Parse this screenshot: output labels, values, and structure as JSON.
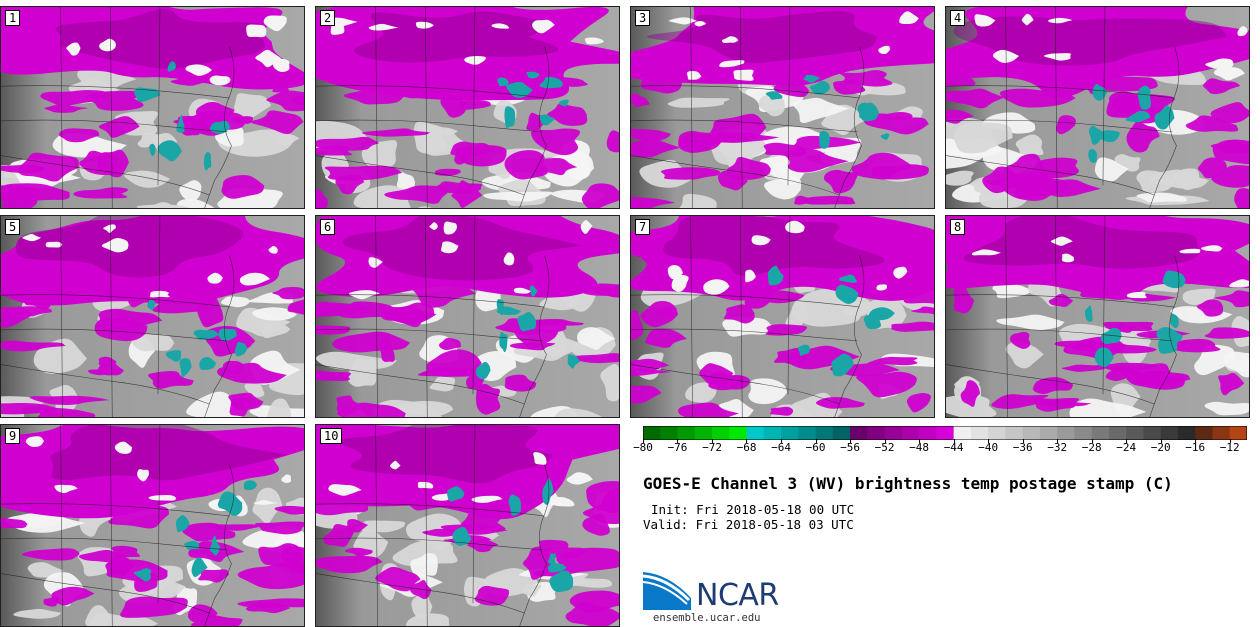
{
  "panels": [
    {
      "label": "1"
    },
    {
      "label": "2"
    },
    {
      "label": "3"
    },
    {
      "label": "4"
    },
    {
      "label": "5"
    },
    {
      "label": "6"
    },
    {
      "label": "7"
    },
    {
      "label": "8"
    },
    {
      "label": "9"
    },
    {
      "label": "10"
    }
  ],
  "colorbar": {
    "min": -80,
    "max": -10,
    "step": 2,
    "tick_labels": [
      "−80",
      "−76",
      "−72",
      "−68",
      "−64",
      "−60",
      "−56",
      "−52",
      "−48",
      "−44",
      "−40",
      "−36",
      "−32",
      "−28",
      "−24",
      "−20",
      "−16",
      "−12"
    ],
    "tick_values": [
      -80,
      -76,
      -72,
      -68,
      -64,
      -60,
      -56,
      -52,
      -48,
      -44,
      -40,
      -36,
      -32,
      -28,
      -24,
      -20,
      -16,
      -12
    ],
    "colors": [
      "#006b00",
      "#008000",
      "#009a00",
      "#00b400",
      "#00d000",
      "#00e800",
      "#00c8c8",
      "#00b4b4",
      "#00a0a0",
      "#008c8c",
      "#007878",
      "#006464",
      "#6a006a",
      "#800080",
      "#960096",
      "#ac00ac",
      "#c200c2",
      "#d800d8",
      "#f0f0f0",
      "#e2e2e2",
      "#d4d4d4",
      "#c6c6c6",
      "#b8b8b8",
      "#aaaaaa",
      "#9a9a9a",
      "#8a8a8a",
      "#7a7a7a",
      "#6a6a6a",
      "#5a5a5a",
      "#4a4a4a",
      "#3a3a3a",
      "#2a2a2a",
      "#5c2a14",
      "#8a3614",
      "#b44414",
      "#d4520f",
      "#e8600a",
      "#d84208",
      "#c42a04"
    ]
  },
  "map_colors": {
    "background_gray": "#8c8c8c",
    "light_gray": "#d8d8d8",
    "white": "#f4f4f4",
    "magenta": "#d000d0",
    "deep_magenta": "#8a008a",
    "teal": "#1aa6a6",
    "dark_gray": "#3c3c3c",
    "boundary": "#1a1a1a"
  },
  "title": "GOES-E Channel 3 (WV) brightness temp postage stamp (C)",
  "init_line": "Init: Fri 2018-05-18 00 UTC",
  "valid_line": "Valid: Fri 2018-05-18 03 UTC",
  "logo": {
    "name": "NCAR",
    "url": "ensemble.ucar.edu",
    "blue": "#0a78c8",
    "dark": "#1f3b73"
  }
}
